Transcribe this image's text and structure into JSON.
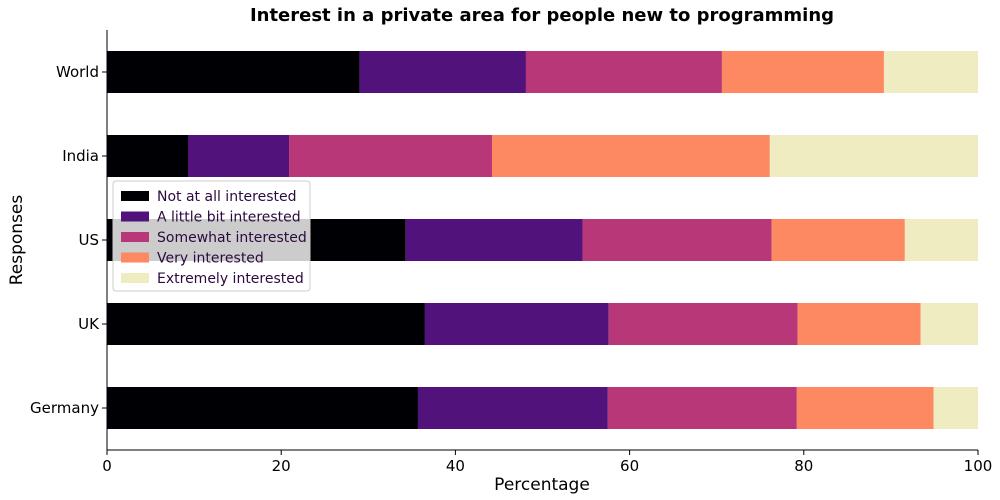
{
  "chart_data": {
    "type": "bar",
    "orientation": "horizontal",
    "stacked": true,
    "title": "Interest in a private area for people new to programming",
    "xlabel": "Percentage",
    "ylabel": "Responses",
    "xlim": [
      0,
      100
    ],
    "xticks": [
      "0",
      "20",
      "40",
      "60",
      "80",
      "100"
    ],
    "categories": [
      "Germany",
      "UK",
      "US",
      "India",
      "World"
    ],
    "series": [
      {
        "name": "Not at all interested",
        "color": "#000004",
        "values": [
          35.7,
          36.5,
          34.3,
          9.3,
          29.0
        ]
      },
      {
        "name": "A little bit interested",
        "color": "#51127c",
        "values": [
          21.8,
          21.1,
          20.3,
          11.6,
          19.1
        ]
      },
      {
        "name": "Somewhat interested",
        "color": "#b73779",
        "values": [
          21.7,
          21.7,
          21.7,
          23.3,
          22.5
        ]
      },
      {
        "name": "Very interested",
        "color": "#fc8961",
        "values": [
          15.7,
          14.1,
          15.3,
          31.9,
          18.6
        ]
      },
      {
        "name": "Extremely interested",
        "color": "#f0ecc2",
        "values": [
          5.1,
          6.6,
          8.4,
          23.9,
          10.8
        ]
      }
    ],
    "grid": false,
    "legend_position": "center-left"
  }
}
